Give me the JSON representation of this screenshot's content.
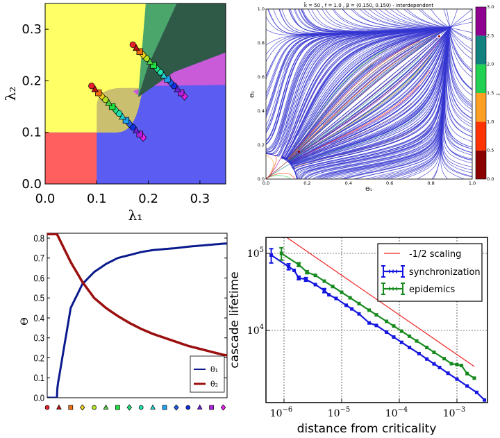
{
  "chart_data": [
    {
      "type": "scatter",
      "panel": "top-left",
      "xlabel": "λ₁",
      "ylabel": "λ₂",
      "xlim": [
        0,
        0.35
      ],
      "ylim": [
        0,
        0.35
      ],
      "xticks": [
        "0.0",
        "0.1",
        "0.2",
        "0.3"
      ],
      "yticks": [
        "0.0",
        "0.1",
        "0.2",
        "0.3"
      ],
      "region_colors": {
        "red": "#ff5f5f",
        "yellow": "#ffff66",
        "blue": "#5a5cf2",
        "olive": "#c9bf6f",
        "light_green": "#4aa66a",
        "dark_green": "#2f5a47",
        "magenta": "#c95ad8"
      },
      "marker_series": [
        {
          "start": [
            0.09,
            0.19
          ],
          "end": [
            0.19,
            0.09
          ]
        },
        {
          "start": [
            0.17,
            0.27
          ],
          "end": [
            0.27,
            0.17
          ]
        }
      ]
    },
    {
      "type": "streamplot",
      "panel": "top-right",
      "title": "k̄ = 50 , f = 1.0 , β = (0.150, 0.150) - interdependent",
      "xlabel": "Θ₁",
      "ylabel": "Θ₂",
      "xlim": [
        0,
        1
      ],
      "ylim": [
        0,
        1
      ],
      "xticks": [
        "0.0",
        "0.2",
        "0.4",
        "0.6",
        "0.8",
        "1.0"
      ],
      "yticks": [
        "0.0",
        "0.2",
        "0.4",
        "0.6",
        "0.8",
        "1.0"
      ],
      "fixed_points": [
        [
          0.84,
          0.84
        ],
        [
          0.16,
          0.16
        ],
        [
          0,
          0
        ]
      ],
      "line_color": "#3535d0",
      "colorbar": {
        "label": "t",
        "ticks": [
          "0.0",
          "0.5",
          "1.0",
          "1.5",
          "2.0",
          "2.5",
          "3.0"
        ],
        "range": [
          0,
          3
        ],
        "colors": [
          "#8b0000",
          "#ff3300",
          "#ffa024",
          "#22d052",
          "#138080",
          "#900090"
        ]
      }
    },
    {
      "type": "line",
      "panel": "bottom-left",
      "xlabel": "",
      "ylabel": "Θ",
      "ylim": [
        0,
        0.82
      ],
      "yticks": [
        "0.0",
        "0.1",
        "0.2",
        "0.3",
        "0.4",
        "0.5",
        "0.6",
        "0.7",
        "0.8"
      ],
      "x": [
        0,
        0.83,
        1,
        2,
        3,
        4,
        5,
        6,
        7,
        8,
        9,
        10,
        11,
        12,
        13,
        14,
        15,
        15.35
      ],
      "series": [
        {
          "name": "θ₁",
          "color": "#0a1a8c",
          "values": [
            0,
            0,
            0.1,
            0.45,
            0.57,
            0.63,
            0.67,
            0.7,
            0.715,
            0.73,
            0.74,
            0.745,
            0.75,
            0.757,
            0.762,
            0.767,
            0.772,
            0.773
          ]
        },
        {
          "name": "θ₂",
          "color": "#9b0f0f",
          "values": [
            0.82,
            0.82,
            0.8,
            0.68,
            0.58,
            0.5,
            0.45,
            0.41,
            0.375,
            0.345,
            0.32,
            0.3,
            0.28,
            0.26,
            0.245,
            0.23,
            0.215,
            0.212
          ]
        }
      ],
      "legend": "lower-right",
      "marker_row": [
        {
          "shape": "circle",
          "color": "#e8202a"
        },
        {
          "shape": "triangle",
          "color": "#b81010"
        },
        {
          "shape": "square",
          "color": "#f07010"
        },
        {
          "shape": "diamond",
          "color": "#f0d020"
        },
        {
          "shape": "circle",
          "color": "#b0e020"
        },
        {
          "shape": "triangle",
          "color": "#50d040"
        },
        {
          "shape": "square",
          "color": "#20e040"
        },
        {
          "shape": "diamond",
          "color": "#20e080"
        },
        {
          "shape": "circle",
          "color": "#20e0b0"
        },
        {
          "shape": "triangle",
          "color": "#20d0d0"
        },
        {
          "shape": "square",
          "color": "#20a0f0"
        },
        {
          "shape": "diamond",
          "color": "#2060f0"
        },
        {
          "shape": "circle",
          "color": "#1030e0"
        },
        {
          "shape": "triangle",
          "color": "#6a20e0"
        },
        {
          "shape": "square",
          "color": "#b020e0"
        },
        {
          "shape": "diamond",
          "color": "#f020f0"
        }
      ]
    },
    {
      "type": "line",
      "panel": "bottom-right",
      "xlabel": "distance from criticality",
      "ylabel": "cascade lifetime",
      "xscale": "log",
      "yscale": "log",
      "xlim": [
        4.9e-07,
        0.0033
      ],
      "ylim": [
        1150,
        162000
      ],
      "xticks": [
        {
          "base": "10",
          "exp": "−6"
        },
        {
          "base": "10",
          "exp": "−5"
        },
        {
          "base": "10",
          "exp": "−4"
        },
        {
          "base": "10",
          "exp": "−3"
        }
      ],
      "yticks": [
        {
          "base": "10",
          "exp": "5"
        },
        {
          "base": "10",
          "exp": "4"
        }
      ],
      "grid": true,
      "legend": "upper-right",
      "series": [
        {
          "name": "-1/2 scaling",
          "color": "#ee2222",
          "x": [
            1e-06,
            0.002
          ],
          "values": [
            170000,
            3400
          ]
        },
        {
          "name": "synchronization",
          "color": "#1515e0",
          "x": [
            6e-07,
            1.2e-06,
            1.5e-06,
            1.8e-06,
            2.4e-06,
            3.5e-06,
            5e-06,
            6e-06,
            8e-06,
            1.2e-05,
            1.5e-05,
            2e-05,
            3e-05,
            4e-05,
            6e-05,
            8e-05,
            0.00011,
            0.00015,
            0.00022,
            0.0003,
            0.0004,
            0.0005,
            0.0007,
            0.001,
            0.0015,
            0.0022,
            0.003
          ],
          "values": [
            95000,
            67200,
            60100,
            48000,
            46000,
            39300,
            32900,
            29000,
            26000,
            21200,
            19000,
            16400,
            12500,
            11600,
            9500,
            8200,
            7000,
            6000,
            5000,
            4250,
            3680,
            3300,
            2780,
            2330,
            1900,
            1570,
            1250
          ],
          "yerr": [
            20000,
            6000,
            0,
            2500,
            2500,
            0,
            2000,
            0,
            0,
            0,
            0,
            0,
            0,
            0,
            0,
            0,
            0,
            0,
            0,
            0,
            0,
            0,
            0,
            0,
            0,
            0,
            0
          ]
        },
        {
          "name": "epidemics",
          "color": "#168a1e",
          "x": [
            9e-07,
            1.8e-06,
            2.5e-06,
            3.5e-06,
            5e-06,
            7e-06,
            1e-05,
            1.4e-05,
            2e-05,
            3e-05,
            4e-05,
            6e-05,
            8e-05,
            0.00011,
            0.00015,
            0.0002,
            0.0003,
            0.0004,
            0.0006,
            0.0008,
            0.001,
            0.0012,
            0.0015,
            0.002
          ],
          "values": [
            100000,
            71500,
            57000,
            51800,
            43600,
            37100,
            31200,
            26500,
            22300,
            18300,
            15900,
            13100,
            11400,
            9770,
            8400,
            7300,
            6000,
            5200,
            4300,
            3700,
            3600,
            3500,
            2750,
            2400
          ],
          "yerr": [
            18000,
            4000,
            2500,
            0,
            0,
            0,
            0,
            0,
            0,
            0,
            0,
            0,
            0,
            0,
            0,
            0,
            0,
            0,
            0,
            0,
            0,
            0,
            0,
            0
          ]
        }
      ]
    }
  ]
}
